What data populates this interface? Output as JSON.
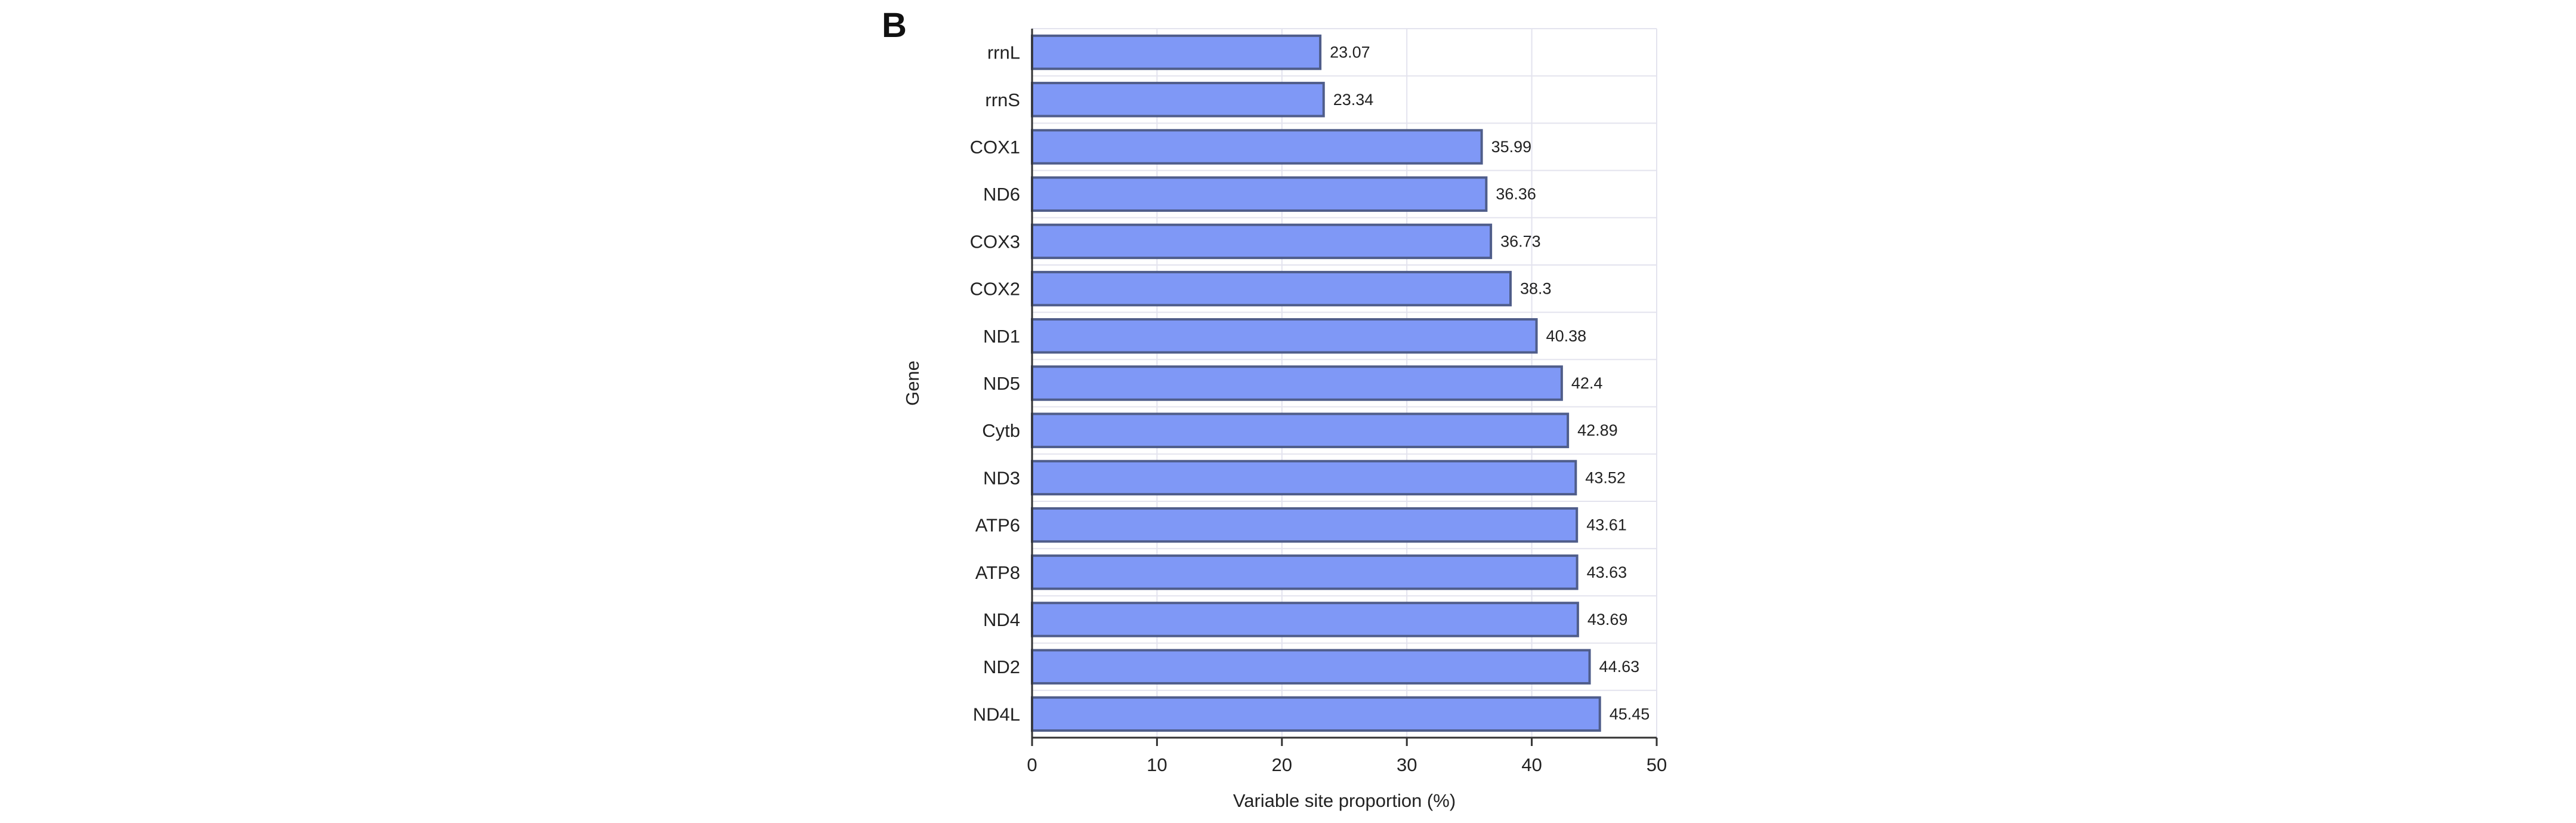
{
  "panel_b": {
    "letter": "B",
    "chart_data": {
      "type": "bar",
      "orientation": "horizontal",
      "categories": [
        "rrnL",
        "rrnS",
        "COX1",
        "ND6",
        "COX3",
        "COX2",
        "ND1",
        "ND5",
        "Cytb",
        "ND3",
        "ATP6",
        "ATP8",
        "ND4",
        "ND2",
        "ND4L"
      ],
      "values": [
        23.07,
        23.34,
        35.99,
        36.36,
        36.73,
        38.3,
        40.38,
        42.4,
        42.89,
        43.52,
        43.61,
        43.63,
        43.69,
        44.63,
        45.45
      ],
      "data_labels": [
        "23.07",
        "23.34",
        "35.99",
        "36.36",
        "36.73",
        "38.3",
        "40.38",
        "42.4",
        "42.89",
        "43.52",
        "43.61",
        "43.63",
        "43.69",
        "44.63",
        "45.45"
      ],
      "xlabel": "Variable site proportion (%)",
      "ylabel": "Gene",
      "xlim": [
        0,
        50
      ],
      "xticks": [
        0,
        10,
        20,
        30,
        40,
        50
      ],
      "xtick_labels": [
        "0",
        "10",
        "20",
        "30",
        "40",
        "50"
      ],
      "grid": true,
      "bar_color": "#7f98f6",
      "bar_edge_color": "#4f5d8a"
    }
  }
}
